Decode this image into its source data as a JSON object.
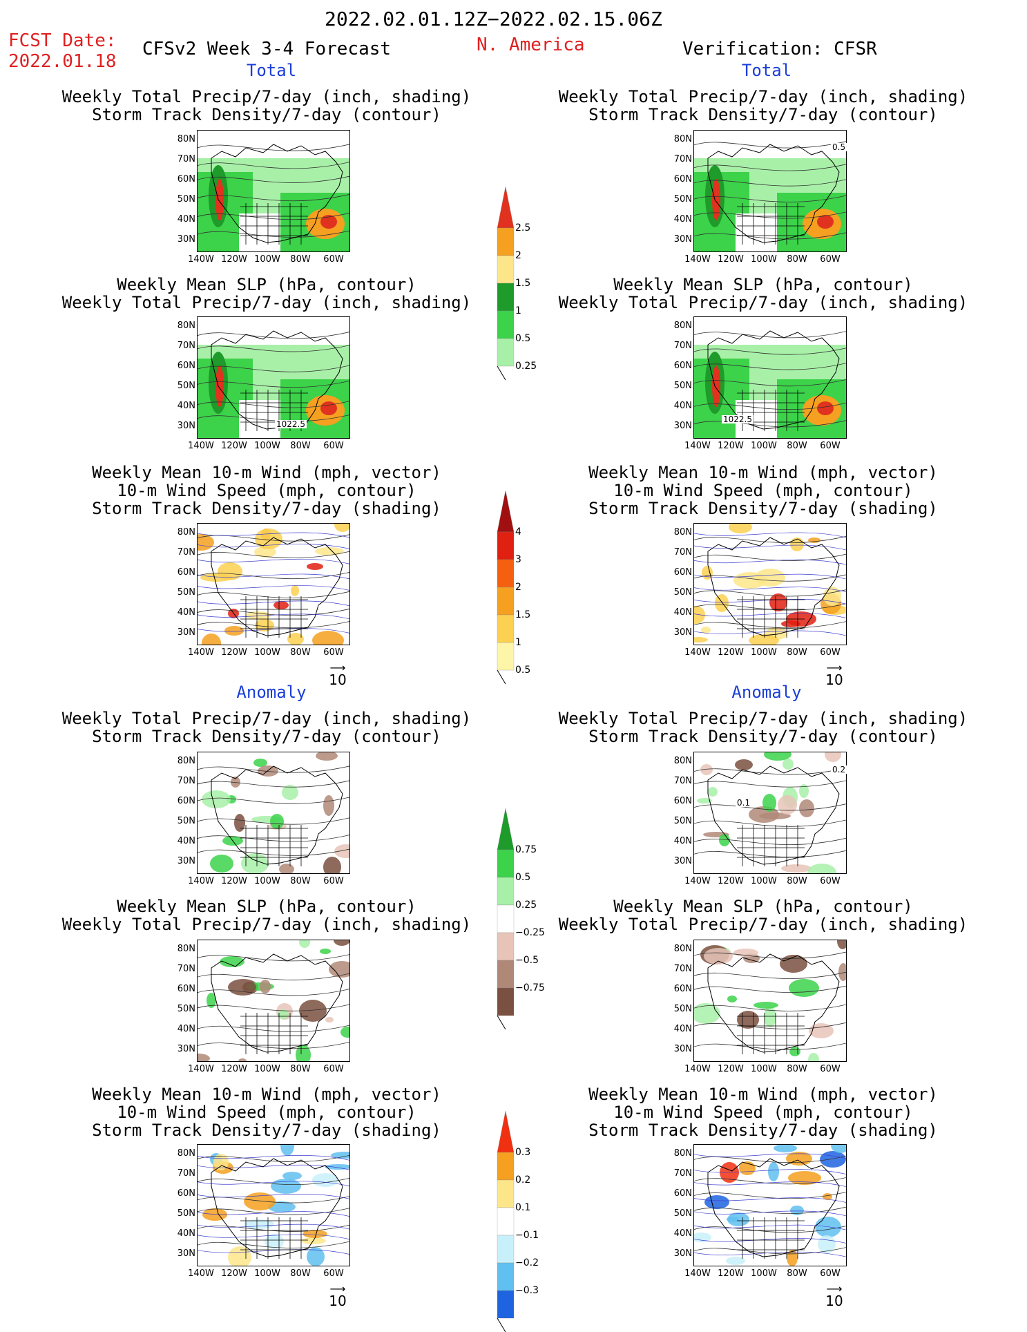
{
  "header": {
    "date_range": "2022.02.01.12Z−2022.02.15.06Z",
    "fcst_label": "FCST Date:",
    "fcst_date": "2022.01.18",
    "forecast_title": "CFSv2 Week 3-4 Forecast",
    "region": "N. America",
    "verification": "Verification: CFSR"
  },
  "sections": {
    "total": "Total",
    "anomaly": "Anomaly"
  },
  "titles": {
    "precip_storm": [
      "Weekly Total Precip/7-day (inch, shading)",
      "Storm Track Density/7-day (contour)"
    ],
    "slp_precip": [
      "Weekly Mean SLP (hPa, contour)",
      "Weekly Total Precip/7-day (inch, shading)"
    ],
    "wind_storm": [
      "Weekly Mean 10-m Wind (mph, vector)",
      "10-m Wind Speed (mph, contour)",
      "Storm Track Density/7-day (shading)"
    ]
  },
  "axes": {
    "lat": [
      "80N",
      "70N",
      "60N",
      "50N",
      "40N",
      "30N"
    ],
    "lon": [
      "140W",
      "120W",
      "100W",
      "80W",
      "60W"
    ]
  },
  "vector_ref": "10",
  "contour_labels": {
    "slp_left": "1022.5",
    "slp_right": "1022.5",
    "storm_right": "0.5",
    "anom_storm_right_a": "0.2",
    "anom_storm_right_b": "0.1"
  },
  "colorbars": {
    "precip_total": {
      "labels": [
        "2.5",
        "2",
        "1.5",
        "1",
        "0.5",
        "0.25"
      ],
      "colors": [
        "#e0321e",
        "#f5a020",
        "#fde68a",
        "#1e9b2a",
        "#3cd24a",
        "#a8f0a8"
      ]
    },
    "storm_total": {
      "labels": [
        "4",
        "3",
        "2",
        "1.5",
        "1",
        "0.5"
      ],
      "colors": [
        "#a01010",
        "#e02010",
        "#f56010",
        "#f5a020",
        "#fcd050",
        "#fdf5a8"
      ]
    },
    "precip_anom": {
      "labels": [
        "0.75",
        "0.5",
        "0.25",
        "−0.25",
        "−0.5",
        "−0.75"
      ],
      "colors": [
        "#1e9b2a",
        "#3cd24a",
        "#a8f0a8",
        "#ffffff",
        "#e8c4b8",
        "#b08878",
        "#7a5040"
      ]
    },
    "storm_anom": {
      "labels": [
        "0.3",
        "0.2",
        "0.1",
        "−0.1",
        "−0.2",
        "−0.3"
      ],
      "colors": [
        "#f03010",
        "#f5a020",
        "#fde68a",
        "#ffffff",
        "#c8f0fa",
        "#60c0f0",
        "#1e64e0"
      ]
    }
  }
}
